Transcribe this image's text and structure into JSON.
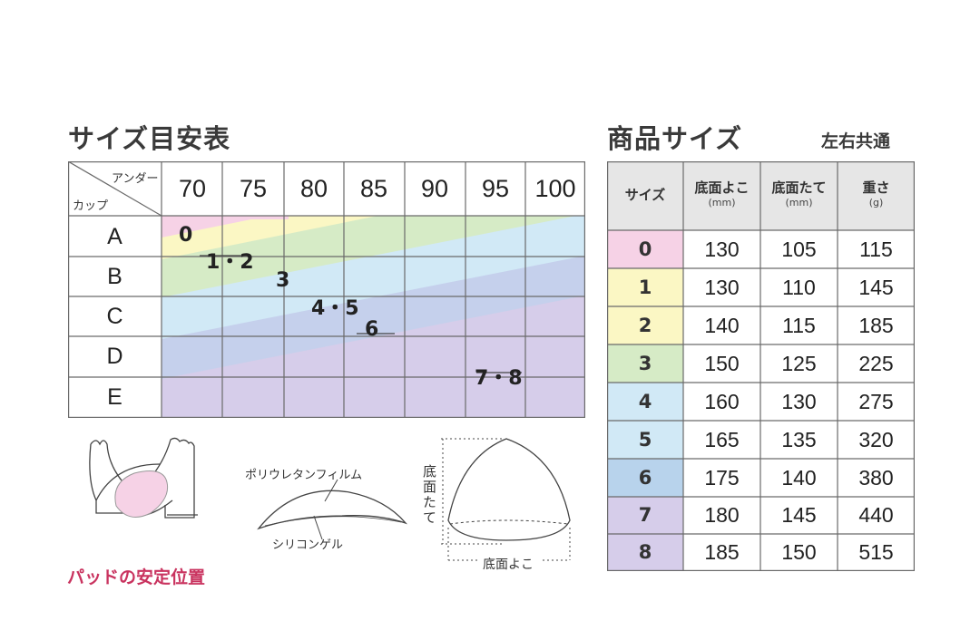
{
  "size_guide": {
    "title": "サイズ目安表",
    "corner_under": "アンダー",
    "corner_cup": "カップ",
    "under_sizes": [
      "70",
      "75",
      "80",
      "85",
      "90",
      "95",
      "100"
    ],
    "cups": [
      "A",
      "B",
      "C",
      "D",
      "E"
    ],
    "pad_labels": [
      "0",
      "1・2",
      "3",
      "4・5",
      "6",
      "7・8"
    ]
  },
  "product_sizes": {
    "title": "商品サイズ",
    "note": "左右共通",
    "headers": [
      {
        "main": "サイズ",
        "unit": ""
      },
      {
        "main": "底面よこ",
        "unit": "(mm)"
      },
      {
        "main": "底面たて",
        "unit": "(mm)"
      },
      {
        "main": "重さ",
        "unit": "(g)"
      }
    ],
    "rows": [
      {
        "size": "0",
        "width": "130",
        "height": "105",
        "weight": "115",
        "color": "#f6d2e6"
      },
      {
        "size": "1",
        "width": "130",
        "height": "110",
        "weight": "145",
        "color": "#fbf7c4"
      },
      {
        "size": "2",
        "width": "140",
        "height": "115",
        "weight": "185",
        "color": "#fbf7c4"
      },
      {
        "size": "3",
        "width": "150",
        "height": "125",
        "weight": "225",
        "color": "#d6ebc6"
      },
      {
        "size": "4",
        "width": "160",
        "height": "130",
        "weight": "275",
        "color": "#d1e9f6"
      },
      {
        "size": "5",
        "width": "165",
        "height": "135",
        "weight": "320",
        "color": "#d1e9f6"
      },
      {
        "size": "6",
        "width": "175",
        "height": "140",
        "weight": "380",
        "color": "#b8d3ec"
      },
      {
        "size": "7",
        "width": "180",
        "height": "145",
        "weight": "440",
        "color": "#d6cdea"
      },
      {
        "size": "8",
        "width": "185",
        "height": "150",
        "weight": "515",
        "color": "#d6cdea"
      }
    ]
  },
  "illustrations": {
    "pad_position_caption": "パッドの安定位置",
    "film_label": "ポリウレタンフィルム",
    "gel_label": "シリコンゲル",
    "base_height_label": "底面たて",
    "base_width_label": "底面よこ"
  },
  "colors": {
    "pink": "#f6d2e6",
    "yellow": "#fbf7c4",
    "green": "#d6ebc6",
    "light_blue": "#d1e9f6",
    "blue": "#b8d3ec",
    "purple": "#d6cdea",
    "caption_pink": "#c9335f",
    "border": "#6a6a6a"
  }
}
